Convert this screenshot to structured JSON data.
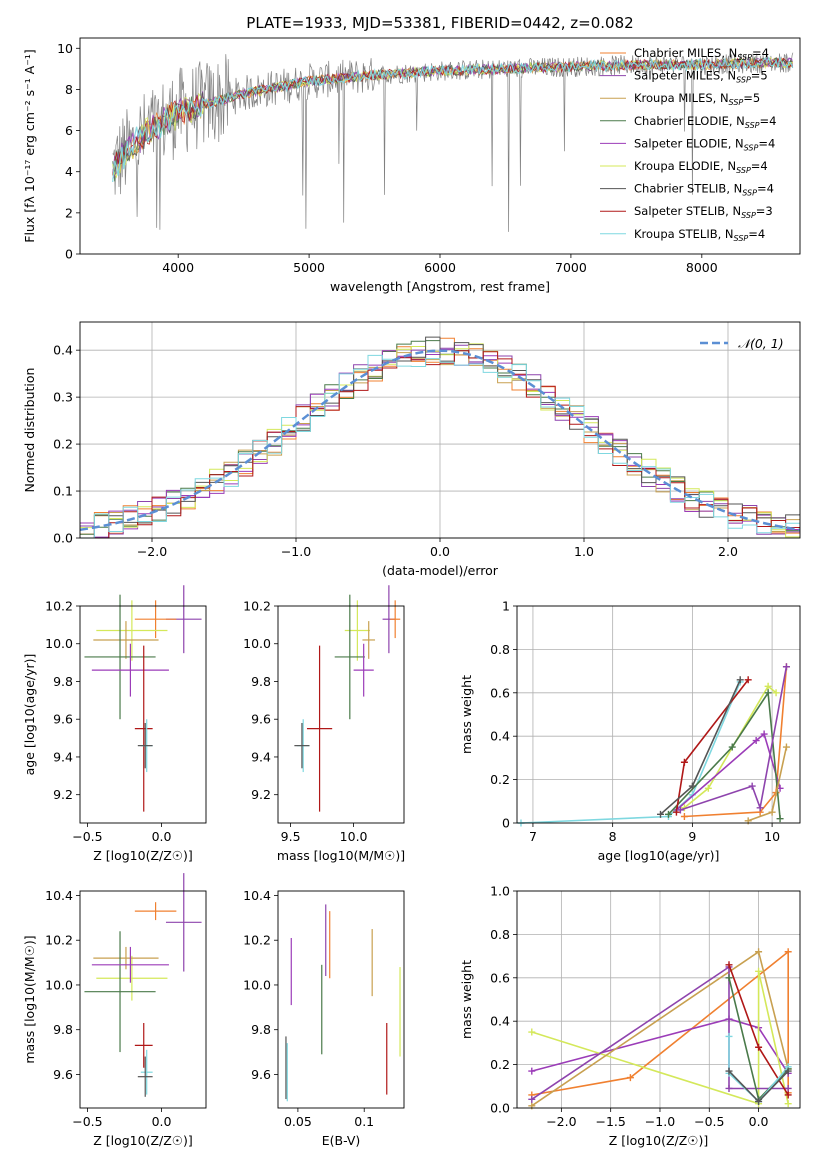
{
  "title": "PLATE=1933, MJD=53381, FIBERID=0442, z=0.082",
  "model_colors": [
    "#f08030",
    "#8e44ad",
    "#c8a050",
    "#4a7a4a",
    "#9b3cb8",
    "#d4e85a",
    "#555555",
    "#b01818",
    "#7fd8e0"
  ],
  "chart_data": [
    {
      "id": "spectrum",
      "type": "line",
      "xlabel": "wavelength [Angstrom, rest frame]",
      "ylabel": "Flux [fλ 10⁻¹⁷ erg cm⁻² s⁻¹ A⁻¹]",
      "xlim": [
        3250,
        8750
      ],
      "ylim": [
        0,
        10.5
      ],
      "xticks": [
        4000,
        5000,
        6000,
        7000,
        8000
      ],
      "yticks": [
        0,
        2,
        4,
        6,
        8,
        10
      ],
      "grid": false,
      "legend_position": "right",
      "legend": [
        "Chabrier MILES, N_SSP=4",
        "Salpeter MILES, N_SSP=5",
        "Kroupa MILES, N_SSP=5",
        "Chabrier ELODIE, N_SSP=4",
        "Salpeter ELODIE, N_SSP=4",
        "Kroupa ELODIE, N_SSP=4",
        "Chabrier STELIB, N_SSP=4",
        "Salpeter STELIB, N_SSP=3",
        "Kroupa STELIB, N_SSP=4"
      ],
      "continuum": {
        "x": [
          3500,
          3700,
          4000,
          4500,
          5000,
          5500,
          6000,
          6500,
          7000,
          7500,
          8000,
          8500,
          8700
        ],
        "y": [
          4.2,
          5.6,
          6.9,
          7.8,
          8.4,
          8.7,
          8.9,
          9.0,
          9.1,
          9.2,
          9.2,
          9.3,
          9.3
        ]
      }
    },
    {
      "id": "residuals",
      "type": "line",
      "xlabel": "(data-model)/error",
      "ylabel": "Normed distribution",
      "xlim": [
        -2.5,
        2.5
      ],
      "ylim": [
        0,
        0.46
      ],
      "xticks": [
        -2,
        -1,
        0,
        1,
        2
      ],
      "yticks": [
        0.0,
        0.1,
        0.2,
        0.3,
        0.4
      ],
      "grid": true,
      "legend": [
        "𝒩(0, 1)"
      ],
      "legend_position": "top-right"
    },
    {
      "id": "age_vs_Z",
      "type": "scatter",
      "xlabel": "Z [log10(Z/Z☉)]",
      "ylabel": "age  [log10(age/yr)]",
      "xlim": [
        -0.55,
        0.3
      ],
      "ylim": [
        9.05,
        10.2
      ],
      "xticks": [
        -0.5,
        0.0
      ],
      "yticks": [
        9.2,
        9.4,
        9.6,
        9.8,
        10.0,
        10.2
      ],
      "points": [
        {
          "x": 0.15,
          "y": 10.13,
          "xerr": 0.12,
          "yerr": 0.18,
          "c": 1
        },
        {
          "x": -0.04,
          "y": 10.13,
          "xerr": 0.14,
          "yerr": 0.1,
          "c": 0
        },
        {
          "x": -0.2,
          "y": 10.07,
          "xerr": 0.24,
          "yerr": 0.16,
          "c": 5
        },
        {
          "x": -0.24,
          "y": 10.02,
          "xerr": 0.22,
          "yerr": 0.1,
          "c": 2
        },
        {
          "x": -0.28,
          "y": 9.93,
          "xerr": 0.24,
          "yerr": 0.33,
          "c": 3
        },
        {
          "x": -0.21,
          "y": 9.86,
          "xerr": 0.26,
          "yerr": 0.14,
          "c": 4
        },
        {
          "x": -0.12,
          "y": 9.55,
          "xerr": 0.06,
          "yerr": 0.44,
          "c": 7
        },
        {
          "x": -0.1,
          "y": 9.46,
          "xerr": 0.04,
          "yerr": 0.14,
          "c": 8
        },
        {
          "x": -0.11,
          "y": 9.46,
          "xerr": 0.05,
          "yerr": 0.12,
          "c": 6
        }
      ]
    },
    {
      "id": "age_vs_mass",
      "type": "scatter",
      "xlabel": "mass [log10(M/M☉)]",
      "ylabel": "",
      "xlim": [
        9.4,
        10.4
      ],
      "ylim": [
        9.05,
        10.2
      ],
      "xticks": [
        9.5,
        10.0
      ],
      "yticks": [
        9.2,
        9.4,
        9.6,
        9.8,
        10.0,
        10.2
      ],
      "points": [
        {
          "x": 10.28,
          "y": 10.13,
          "xerr": 0.05,
          "yerr": 0.18,
          "c": 1
        },
        {
          "x": 10.33,
          "y": 10.13,
          "xerr": 0.04,
          "yerr": 0.1,
          "c": 0
        },
        {
          "x": 10.03,
          "y": 10.07,
          "xerr": 0.1,
          "yerr": 0.16,
          "c": 5
        },
        {
          "x": 10.12,
          "y": 10.02,
          "xerr": 0.05,
          "yerr": 0.1,
          "c": 2
        },
        {
          "x": 9.97,
          "y": 9.93,
          "xerr": 0.12,
          "yerr": 0.33,
          "c": 3
        },
        {
          "x": 10.08,
          "y": 9.86,
          "xerr": 0.08,
          "yerr": 0.14,
          "c": 4
        },
        {
          "x": 9.73,
          "y": 9.55,
          "xerr": 0.1,
          "yerr": 0.44,
          "c": 7
        },
        {
          "x": 9.6,
          "y": 9.46,
          "xerr": 0.05,
          "yerr": 0.14,
          "c": 8
        },
        {
          "x": 9.59,
          "y": 9.46,
          "xerr": 0.06,
          "yerr": 0.12,
          "c": 6
        }
      ]
    },
    {
      "id": "weight_vs_age",
      "type": "line",
      "xlabel": "age  [log10(age/yr)]",
      "ylabel": "mass weight",
      "xlim": [
        6.8,
        10.35
      ],
      "ylim": [
        0,
        1
      ],
      "xticks": [
        7,
        8,
        9,
        10
      ],
      "yticks": [
        0.0,
        0.2,
        0.4,
        0.6,
        0.8,
        1.0
      ],
      "grid": true,
      "series": [
        {
          "c": 0,
          "x": [
            8.9,
            9.85,
            10.05,
            10.18
          ],
          "y": [
            0.03,
            0.05,
            0.14,
            0.72
          ]
        },
        {
          "c": 8,
          "x": [
            6.85,
            8.7,
            9.0,
            9.6
          ],
          "y": [
            0.0,
            0.03,
            0.13,
            0.65
          ]
        },
        {
          "c": 5,
          "x": [
            8.9,
            9.2,
            9.95,
            10.05
          ],
          "y": [
            0.07,
            0.16,
            0.63,
            0.6
          ]
        },
        {
          "c": 4,
          "x": [
            8.8,
            9.8,
            9.9,
            10.1
          ],
          "y": [
            0.06,
            0.38,
            0.41,
            0.16
          ]
        },
        {
          "c": 3,
          "x": [
            8.7,
            9.5,
            9.95,
            10.1
          ],
          "y": [
            0.04,
            0.35,
            0.6,
            0.02
          ]
        },
        {
          "c": 7,
          "x": [
            8.8,
            8.9,
            9.7
          ],
          "y": [
            0.05,
            0.28,
            0.66
          ]
        },
        {
          "c": 6,
          "x": [
            8.6,
            9.0,
            9.6
          ],
          "y": [
            0.04,
            0.17,
            0.66
          ]
        },
        {
          "c": 1,
          "x": [
            8.85,
            9.75,
            9.85,
            10.18
          ],
          "y": [
            0.06,
            0.17,
            0.07,
            0.72
          ]
        },
        {
          "c": 2,
          "x": [
            9.7,
            10.0,
            10.18
          ],
          "y": [
            0.01,
            0.05,
            0.35
          ]
        }
      ]
    },
    {
      "id": "mass_vs_Z",
      "type": "scatter",
      "xlabel": "Z [log10(Z/Z☉)]",
      "ylabel": "mass [log10(M/M☉)]",
      "xlim": [
        -0.55,
        0.3
      ],
      "ylim": [
        9.45,
        10.42
      ],
      "xticks": [
        -0.5,
        0.0
      ],
      "yticks": [
        9.6,
        9.8,
        10.0,
        10.2,
        10.4
      ],
      "points": [
        {
          "x": 0.15,
          "y": 10.28,
          "xerr": 0.12,
          "yerr": 0.22,
          "c": 1
        },
        {
          "x": -0.04,
          "y": 10.33,
          "xerr": 0.14,
          "yerr": 0.04,
          "c": 0
        },
        {
          "x": -0.2,
          "y": 10.03,
          "xerr": 0.24,
          "yerr": 0.1,
          "c": 5
        },
        {
          "x": -0.24,
          "y": 10.12,
          "xerr": 0.22,
          "yerr": 0.05,
          "c": 2
        },
        {
          "x": -0.28,
          "y": 9.97,
          "xerr": 0.24,
          "yerr": 0.27,
          "c": 3
        },
        {
          "x": -0.21,
          "y": 10.09,
          "xerr": 0.26,
          "yerr": 0.08,
          "c": 4
        },
        {
          "x": -0.12,
          "y": 9.73,
          "xerr": 0.06,
          "yerr": 0.1,
          "c": 7
        },
        {
          "x": -0.1,
          "y": 9.61,
          "xerr": 0.04,
          "yerr": 0.1,
          "c": 8
        },
        {
          "x": -0.11,
          "y": 9.59,
          "xerr": 0.05,
          "yerr": 0.09,
          "c": 6
        }
      ]
    },
    {
      "id": "mass_vs_EBV",
      "type": "scatter",
      "xlabel": "E(B-V)",
      "ylabel": "",
      "xlim": [
        0.035,
        0.13
      ],
      "ylim": [
        9.45,
        10.42
      ],
      "xticks": [
        0.05,
        0.1
      ],
      "yticks": [
        9.6,
        9.8,
        10.0,
        10.2,
        10.4
      ],
      "points": [
        {
          "x": 0.074,
          "y": 10.18,
          "xerr": 0,
          "yerr": 0.15,
          "c": 0
        },
        {
          "x": 0.071,
          "y": 10.2,
          "xerr": 0,
          "yerr": 0.16,
          "c": 1
        },
        {
          "x": 0.106,
          "y": 10.1,
          "xerr": 0,
          "yerr": 0.15,
          "c": 2
        },
        {
          "x": 0.068,
          "y": 9.89,
          "xerr": 0,
          "yerr": 0.2,
          "c": 3
        },
        {
          "x": 0.045,
          "y": 10.06,
          "xerr": 0,
          "yerr": 0.15,
          "c": 4
        },
        {
          "x": 0.127,
          "y": 9.88,
          "xerr": 0,
          "yerr": 0.2,
          "c": 5
        },
        {
          "x": 0.041,
          "y": 9.63,
          "xerr": 0,
          "yerr": 0.14,
          "c": 6
        },
        {
          "x": 0.117,
          "y": 9.67,
          "xerr": 0,
          "yerr": 0.16,
          "c": 7
        },
        {
          "x": 0.042,
          "y": 9.61,
          "xerr": 0,
          "yerr": 0.13,
          "c": 8
        }
      ]
    },
    {
      "id": "weight_vs_Z",
      "type": "line",
      "xlabel": "Z [log10(Z/Z☉)]",
      "ylabel": "mass weight",
      "xlim": [
        -2.45,
        0.42
      ],
      "ylim": [
        0,
        1
      ],
      "xticks": [
        -2.0,
        -1.5,
        -1.0,
        -0.5,
        0.0
      ],
      "yticks": [
        0.0,
        0.2,
        0.4,
        0.6,
        0.8,
        1.0
      ],
      "grid": true,
      "series": [
        {
          "c": 0,
          "x": [
            -2.3,
            -1.3,
            0.3,
            0.3
          ],
          "y": [
            0.06,
            0.14,
            0.72,
            0.07
          ]
        },
        {
          "c": 4,
          "x": [
            -2.3,
            -0.3,
            0.0,
            0.3
          ],
          "y": [
            0.17,
            0.41,
            0.37,
            0.16
          ]
        },
        {
          "c": 5,
          "x": [
            -2.3,
            0.0,
            0.0,
            0.3
          ],
          "y": [
            0.35,
            0.02,
            0.63,
            0.02
          ]
        },
        {
          "c": 2,
          "x": [
            -2.3,
            0.0,
            0.3
          ],
          "y": [
            0.01,
            0.72,
            0.18
          ]
        },
        {
          "c": 1,
          "x": [
            -2.3,
            -0.3,
            -0.3,
            0.3
          ],
          "y": [
            0.04,
            0.65,
            0.09,
            0.09
          ]
        },
        {
          "c": 7,
          "x": [
            -0.3,
            0.0,
            0.3
          ],
          "y": [
            0.66,
            0.28,
            0.06
          ]
        },
        {
          "c": 3,
          "x": [
            -0.3,
            0.0,
            0.3
          ],
          "y": [
            0.6,
            0.04,
            0.18
          ]
        },
        {
          "c": 8,
          "x": [
            -0.3,
            -0.3,
            0.0,
            0.3
          ],
          "y": [
            0.33,
            0.16,
            0.03,
            0.19
          ]
        },
        {
          "c": 6,
          "x": [
            -0.3,
            0.0,
            0.3
          ],
          "y": [
            0.17,
            0.03,
            0.17
          ]
        }
      ]
    }
  ]
}
